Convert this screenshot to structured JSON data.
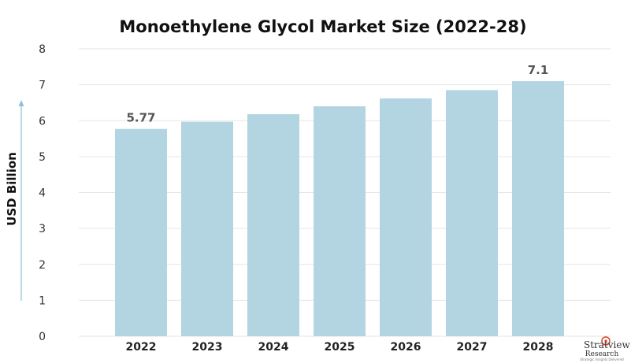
{
  "chart_data": {
    "type": "bar",
    "title": "Monoethylene Glycol Market Size (2022-28)",
    "ylabel": "USD Billion",
    "xlabel": "",
    "categories": [
      "2022",
      "2023",
      "2024",
      "2025",
      "2026",
      "2027",
      "2028"
    ],
    "values": [
      5.77,
      5.97,
      6.18,
      6.4,
      6.62,
      6.85,
      7.1
    ],
    "data_labels": {
      "2022": "5.77",
      "2028": "7.1"
    },
    "ylim": [
      0,
      8
    ],
    "yticks": [
      0,
      1,
      2,
      3,
      4,
      5,
      6,
      7,
      8
    ],
    "grid": true,
    "bar_color": "#b3d5e2",
    "grid_color": "#e6e6e6",
    "arrow_color": "#8ec1d4"
  },
  "branding": {
    "logo_line1": "Stratview™",
    "logo_line2": "Research",
    "logo_tagline": "Strategic Insights Delivered"
  }
}
